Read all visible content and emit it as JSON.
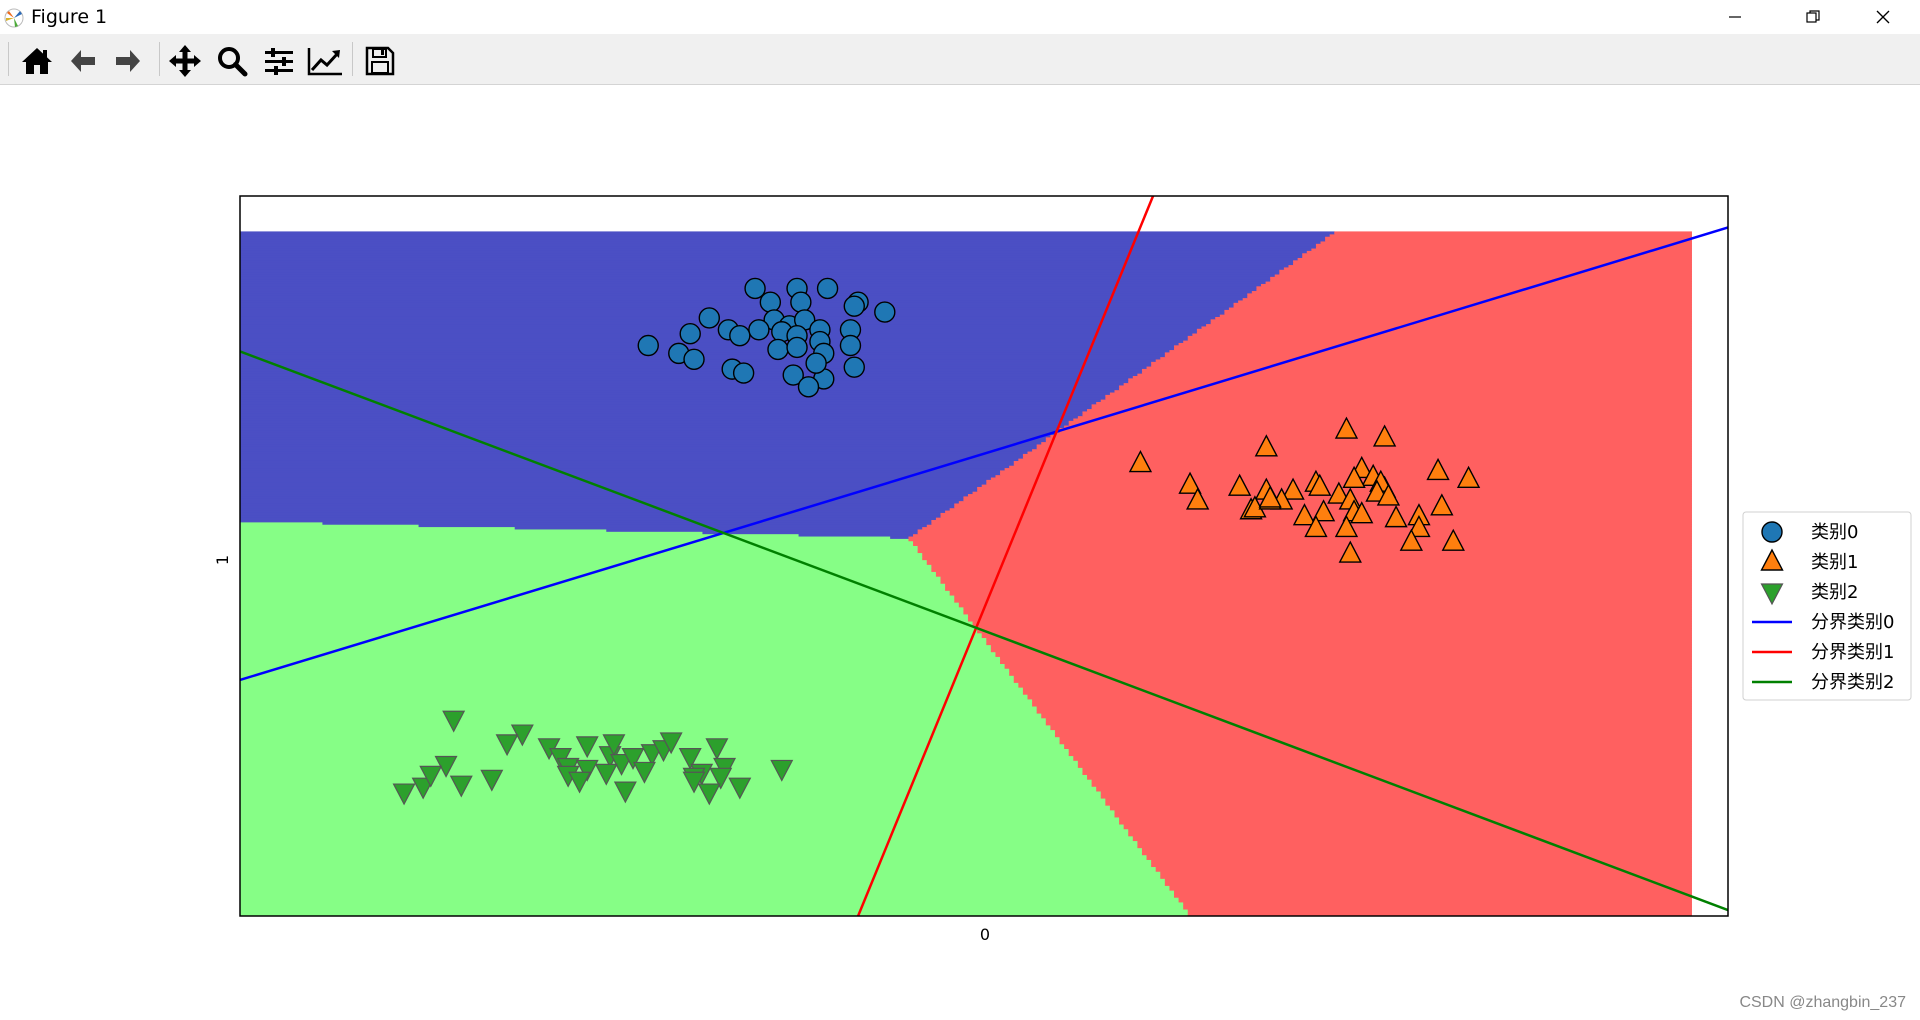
{
  "window": {
    "title": "Figure 1",
    "controls": [
      "minimize",
      "restore",
      "close"
    ]
  },
  "toolbar": {
    "buttons": [
      {
        "name": "home",
        "icon": "home-icon"
      },
      {
        "name": "back",
        "icon": "arrow-left-icon"
      },
      {
        "name": "forward",
        "icon": "arrow-right-icon"
      },
      {
        "name": "pan",
        "icon": "move-icon"
      },
      {
        "name": "zoom",
        "icon": "magnifier-icon"
      },
      {
        "name": "configure-subplots",
        "icon": "sliders-icon"
      },
      {
        "name": "edit-axis",
        "icon": "line-chart-icon"
      },
      {
        "name": "save",
        "icon": "floppy-disk-icon"
      }
    ]
  },
  "chart_data": {
    "type": "scatter",
    "xlabel": "0",
    "ylabel": "1",
    "xlim": [
      -8.5,
      11
    ],
    "ylim": [
      -10.6,
      7.7
    ],
    "grid": false,
    "ticks_shown": false,
    "legend_placement": "right, outside the axes",
    "regions": [
      {
        "class": "类别0",
        "color": "#4b4fc4"
      },
      {
        "class": "类别1",
        "color": "#ff6060"
      },
      {
        "class": "类别2",
        "color": "#86fe86"
      }
    ],
    "region_extent": {
      "x": [
        -8.5,
        10.5
      ],
      "y": [
        -10.6,
        6.8
      ]
    },
    "series": [
      {
        "name": "类别0",
        "marker": "circle",
        "color": "#1f77b4",
        "points": [
          [
            -1.75,
            5.35
          ],
          [
            -1.2,
            5.35
          ],
          [
            -0.8,
            5.35
          ],
          [
            -1.55,
            5.0
          ],
          [
            -1.15,
            5.0
          ],
          [
            -0.4,
            5.0
          ],
          [
            -0.05,
            4.75
          ],
          [
            -2.35,
            4.6
          ],
          [
            -2.1,
            4.3
          ],
          [
            -1.5,
            4.55
          ],
          [
            -1.3,
            4.4
          ],
          [
            -1.1,
            4.55
          ],
          [
            -1.7,
            4.3
          ],
          [
            -1.4,
            4.25
          ],
          [
            -1.2,
            4.15
          ],
          [
            -0.9,
            4.3
          ],
          [
            -0.5,
            4.3
          ],
          [
            -0.9,
            4.0
          ],
          [
            -2.75,
            3.7
          ],
          [
            -2.55,
            3.55
          ],
          [
            -2.05,
            3.3
          ],
          [
            -1.9,
            3.2
          ],
          [
            -1.45,
            3.8
          ],
          [
            -1.2,
            3.85
          ],
          [
            -0.85,
            3.7
          ],
          [
            -0.45,
            3.35
          ],
          [
            -0.85,
            3.05
          ],
          [
            -1.25,
            3.15
          ],
          [
            -1.05,
            2.85
          ],
          [
            -0.95,
            3.45
          ],
          [
            -3.15,
            3.9
          ],
          [
            -2.6,
            4.2
          ],
          [
            -1.95,
            4.15
          ],
          [
            -0.45,
            4.9
          ],
          [
            -0.5,
            3.9
          ]
        ]
      },
      {
        "name": "类别1",
        "marker": "triangle_up",
        "color": "#ff7f0e",
        "points": [
          [
            6.0,
            1.75
          ],
          [
            6.5,
            1.55
          ],
          [
            3.3,
            0.9
          ],
          [
            4.95,
            1.3
          ],
          [
            6.2,
            0.75
          ],
          [
            7.2,
            0.7
          ],
          [
            6.35,
            0.55
          ],
          [
            6.1,
            0.5
          ],
          [
            5.6,
            0.4
          ],
          [
            5.9,
            0.1
          ],
          [
            6.5,
            0.25
          ],
          [
            4.95,
            0.2
          ],
          [
            5.3,
            0.2
          ],
          [
            5.65,
            0.3
          ],
          [
            6.45,
            0.4
          ],
          [
            6.4,
            0.15
          ],
          [
            7.6,
            0.5
          ],
          [
            3.95,
            0.35
          ],
          [
            4.6,
            0.3
          ],
          [
            4.75,
            -0.3
          ],
          [
            5.15,
            -0.05
          ],
          [
            5.45,
            -0.45
          ],
          [
            6.05,
            -0.05
          ],
          [
            6.1,
            -0.35
          ],
          [
            4.8,
            -0.25
          ],
          [
            7.25,
            -0.2
          ],
          [
            5.0,
            -0.05
          ],
          [
            6.55,
            0.05
          ],
          [
            5.7,
            -0.35
          ],
          [
            4.05,
            -0.05
          ],
          [
            5.6,
            -0.75
          ],
          [
            6.0,
            -0.75
          ],
          [
            6.2,
            -0.4
          ],
          [
            6.65,
            -0.5
          ],
          [
            6.95,
            -0.45
          ],
          [
            6.95,
            -0.75
          ],
          [
            6.85,
            -1.1
          ],
          [
            7.4,
            -1.1
          ],
          [
            6.05,
            -1.4
          ],
          [
            5.0,
            0.0
          ]
        ]
      },
      {
        "name": "类别2",
        "marker": "triangle_down",
        "color": "#2ca02c",
        "points": [
          [
            -5.7,
            -5.6
          ],
          [
            -4.8,
            -5.95
          ],
          [
            -4.45,
            -6.3
          ],
          [
            -4.3,
            -6.55
          ],
          [
            -4.2,
            -6.8
          ],
          [
            -3.65,
            -6.5
          ],
          [
            -3.5,
            -6.7
          ],
          [
            -3.35,
            -6.55
          ],
          [
            -3.1,
            -6.45
          ],
          [
            -2.95,
            -6.35
          ],
          [
            -2.6,
            -6.55
          ],
          [
            -2.25,
            -6.3
          ],
          [
            -2.15,
            -6.8
          ],
          [
            -1.4,
            -6.85
          ],
          [
            -2.45,
            -6.95
          ],
          [
            -2.55,
            -7.05
          ],
          [
            -2.2,
            -7.05
          ],
          [
            -3.2,
            -6.9
          ],
          [
            -3.7,
            -6.95
          ],
          [
            -3.95,
            -6.85
          ],
          [
            -4.2,
            -7.0
          ],
          [
            -4.05,
            -7.15
          ],
          [
            -6.35,
            -7.45
          ],
          [
            -6.1,
            -7.3
          ],
          [
            -5.6,
            -7.25
          ],
          [
            -5.2,
            -7.1
          ],
          [
            -5.8,
            -6.75
          ],
          [
            -2.55,
            -7.15
          ],
          [
            -1.95,
            -7.3
          ],
          [
            -2.35,
            -7.45
          ],
          [
            -3.45,
            -7.4
          ],
          [
            -6.0,
            -7.0
          ],
          [
            -5.0,
            -6.2
          ],
          [
            -2.85,
            -6.15
          ],
          [
            -3.6,
            -6.2
          ],
          [
            -3.95,
            -6.25
          ]
        ]
      }
    ],
    "boundary_lines": [
      {
        "name": "分界类别0",
        "color": "#0000ff",
        "x": [
          -8.5,
          11
        ],
        "y": [
          -4.6,
          6.9
        ]
      },
      {
        "name": "分界类别1",
        "color": "#ff0000",
        "x": [
          -0.4,
          3.55
        ],
        "y": [
          -10.6,
          8.1
        ]
      },
      {
        "name": "分界类别2",
        "color": "#008000",
        "x": [
          -8.5,
          11
        ],
        "y": [
          3.75,
          -10.45
        ]
      }
    ]
  },
  "watermark": "CSDN @zhangbin_237"
}
